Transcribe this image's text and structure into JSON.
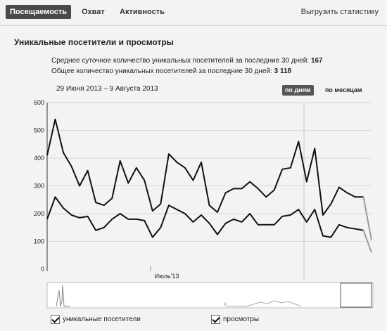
{
  "tabs": [
    {
      "label": "Посещаемость",
      "active": true
    },
    {
      "label": "Охват",
      "active": false
    },
    {
      "label": "Активность",
      "active": false
    }
  ],
  "export_label": "Выгрузить статистику",
  "section_title": "Уникальные посетители и просмотры",
  "stats": {
    "avg_label": "Среднее суточное количество уникальных посетителей за последние 30 дней:",
    "avg_value": "167",
    "total_label": "Общее количество уникальных посетителей за последние 30 дней:",
    "total_value": "3 118"
  },
  "period": "29 Июня 2013 – 9 Августа 2013",
  "granularity": {
    "days_label": "по дням",
    "months_label": "по месяцам",
    "selected": "days"
  },
  "legend": [
    {
      "label": "уникальные посетители",
      "checked": true
    },
    {
      "label": "просмотры",
      "checked": true
    }
  ],
  "chart_data": {
    "type": "line",
    "ylim": [
      0,
      600
    ],
    "yticks": [
      "600",
      "500",
      "400",
      "300",
      "200",
      "100",
      "0"
    ],
    "xlabel_marker": "Июль'13",
    "series": [
      {
        "name": "просмотры",
        "values": [
          410,
          540,
          420,
          370,
          300,
          355,
          240,
          230,
          255,
          390,
          310,
          365,
          320,
          210,
          235,
          415,
          385,
          365,
          320,
          385,
          230,
          205,
          275,
          290,
          290,
          315,
          290,
          260,
          285,
          360,
          365,
          460,
          315,
          435,
          195,
          235,
          295,
          275,
          260,
          260,
          105
        ]
      },
      {
        "name": "уникальные посетители",
        "values": [
          180,
          260,
          220,
          195,
          185,
          190,
          140,
          150,
          180,
          200,
          180,
          180,
          175,
          115,
          150,
          230,
          215,
          200,
          170,
          195,
          165,
          125,
          165,
          180,
          170,
          200,
          160,
          160,
          160,
          190,
          195,
          215,
          170,
          215,
          120,
          115,
          160,
          150,
          145,
          140,
          60
        ]
      }
    ],
    "colors": {
      "line": "#111111",
      "projected": "#9a9a9a",
      "grid": "#d9d9d9",
      "axis": "#333333"
    }
  }
}
